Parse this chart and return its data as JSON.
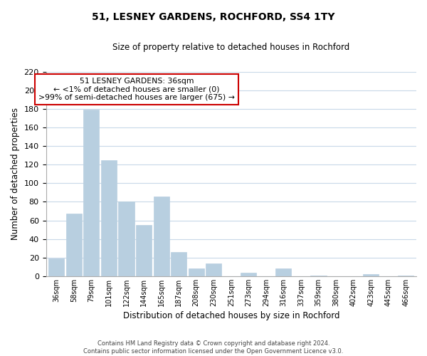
{
  "title": "51, LESNEY GARDENS, ROCHFORD, SS4 1TY",
  "subtitle": "Size of property relative to detached houses in Rochford",
  "xlabel": "Distribution of detached houses by size in Rochford",
  "ylabel": "Number of detached properties",
  "bar_labels": [
    "36sqm",
    "58sqm",
    "79sqm",
    "101sqm",
    "122sqm",
    "144sqm",
    "165sqm",
    "187sqm",
    "208sqm",
    "230sqm",
    "251sqm",
    "273sqm",
    "294sqm",
    "316sqm",
    "337sqm",
    "359sqm",
    "380sqm",
    "402sqm",
    "423sqm",
    "445sqm",
    "466sqm"
  ],
  "bar_heights": [
    19,
    67,
    179,
    125,
    80,
    55,
    86,
    26,
    8,
    14,
    0,
    4,
    0,
    8,
    0,
    1,
    0,
    0,
    2,
    0,
    1
  ],
  "bar_color": "#b8cfe0",
  "ylim": [
    0,
    220
  ],
  "yticks": [
    0,
    20,
    40,
    60,
    80,
    100,
    120,
    140,
    160,
    180,
    200,
    220
  ],
  "annotation_title": "51 LESNEY GARDENS: 36sqm",
  "annotation_line1": "← <1% of detached houses are smaller (0)",
  "annotation_line2": ">99% of semi-detached houses are larger (675) →",
  "annotation_box_color": "#ffffff",
  "annotation_border_color": "#cc0000",
  "footer_line1": "Contains HM Land Registry data © Crown copyright and database right 2024.",
  "footer_line2": "Contains public sector information licensed under the Open Government Licence v3.0.",
  "background_color": "#ffffff",
  "grid_color": "#c8d8e8"
}
